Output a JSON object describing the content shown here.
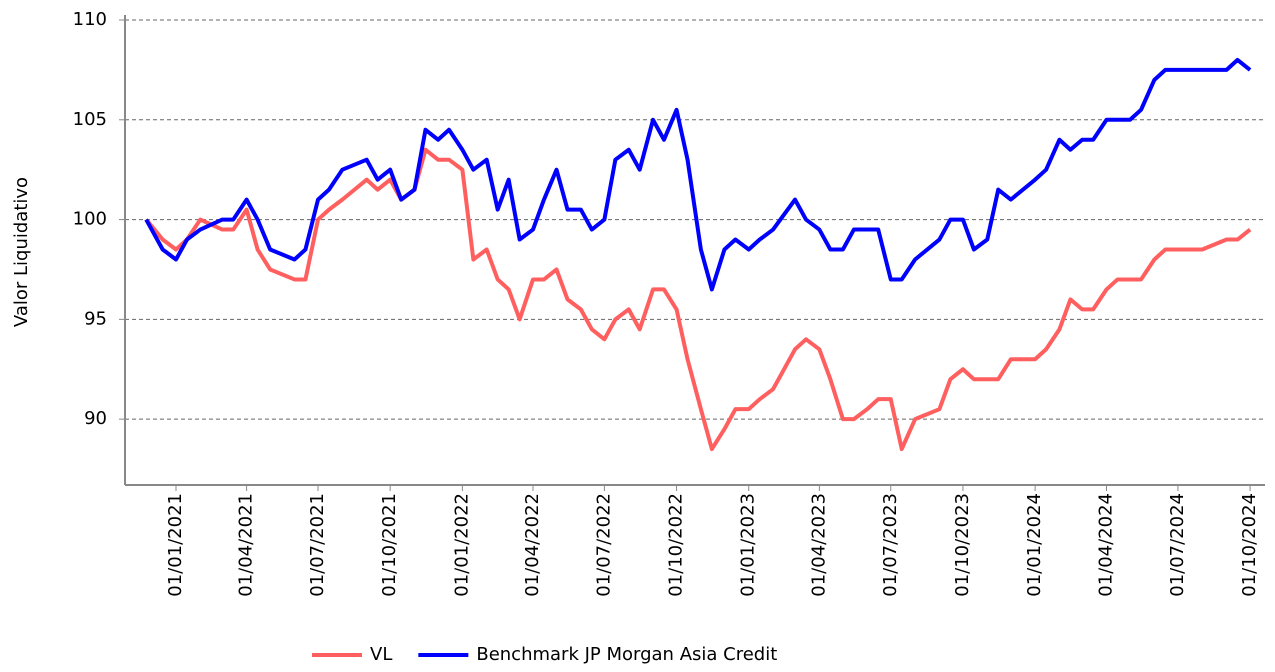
{
  "chart_data": {
    "type": "line",
    "ylabel": "Valor Liquidativo",
    "x": [
      "24/11/2020",
      "15/12/2020",
      "01/01/2021",
      "15/01/2021",
      "01/02/2021",
      "01/03/2021",
      "15/03/2021",
      "01/04/2021",
      "15/04/2021",
      "01/05/2021",
      "01/06/2021",
      "15/06/2021",
      "01/07/2021",
      "15/07/2021",
      "01/08/2021",
      "01/09/2021",
      "15/09/2021",
      "01/10/2021",
      "15/10/2021",
      "01/11/2021",
      "15/11/2021",
      "01/12/2021",
      "15/12/2021",
      "01/01/2022",
      "15/01/2022",
      "01/02/2022",
      "15/02/2022",
      "01/03/2022",
      "15/03/2022",
      "01/04/2022",
      "15/04/2022",
      "01/05/2022",
      "15/05/2022",
      "01/06/2022",
      "15/06/2022",
      "01/07/2022",
      "15/07/2022",
      "01/08/2022",
      "15/08/2022",
      "01/09/2022",
      "15/09/2022",
      "01/10/2022",
      "15/10/2022",
      "01/11/2022",
      "15/11/2022",
      "01/12/2022",
      "15/12/2022",
      "01/01/2023",
      "15/01/2023",
      "01/02/2023",
      "01/03/2023",
      "15/03/2023",
      "01/04/2023",
      "15/04/2023",
      "01/05/2023",
      "15/05/2023",
      "01/06/2023",
      "15/06/2023",
      "01/07/2023",
      "15/07/2023",
      "01/08/2023",
      "01/09/2023",
      "15/09/2023",
      "01/10/2023",
      "15/10/2023",
      "01/11/2023",
      "15/11/2023",
      "01/12/2023",
      "01/01/2024",
      "15/01/2024",
      "01/02/2024",
      "15/02/2024",
      "01/03/2024",
      "15/03/2024",
      "01/04/2024",
      "15/04/2024",
      "01/05/2024",
      "15/05/2024",
      "01/06/2024",
      "15/06/2024",
      "01/08/2024",
      "01/09/2024",
      "15/09/2024",
      "01/10/2024"
    ],
    "series": [
      {
        "name": "VL",
        "color": "#ff5f5f",
        "values": [
          100,
          99,
          98.5,
          99,
          100,
          99.5,
          99.5,
          100.5,
          98.5,
          97.5,
          97,
          97,
          100,
          100.5,
          101,
          102,
          101.5,
          102,
          101,
          101.5,
          103.5,
          103,
          103,
          102.5,
          98,
          98.5,
          97,
          96.5,
          95,
          97,
          97,
          97.5,
          96,
          95.5,
          94.5,
          94,
          95,
          95.5,
          94.5,
          96.5,
          96.5,
          95.5,
          93,
          90.5,
          88.5,
          89.5,
          90.5,
          90.5,
          91,
          91.5,
          93.5,
          94,
          93.5,
          92,
          90,
          90,
          90.5,
          91,
          91,
          88.5,
          90,
          90.5,
          92,
          92.5,
          92,
          92,
          92,
          93,
          93,
          93.5,
          94.5,
          96,
          95.5,
          95.5,
          96.5,
          97,
          97,
          97,
          98,
          98.5,
          98.5,
          99,
          99,
          99.5
        ]
      },
      {
        "name": "Benchmark JP Morgan Asia Credit",
        "color": "#0000ff",
        "values": [
          100,
          98.5,
          98,
          99,
          99.5,
          100,
          100,
          101,
          100,
          98.5,
          98,
          98.5,
          101,
          101.5,
          102.5,
          103,
          102,
          102.5,
          101,
          101.5,
          104.5,
          104,
          104.5,
          103.5,
          102.5,
          103,
          100.5,
          102,
          99,
          99.5,
          101,
          102.5,
          100.5,
          100.5,
          99.5,
          100,
          103,
          103.5,
          102.5,
          105,
          104,
          105.5,
          103,
          98.5,
          96.5,
          98.5,
          99,
          98.5,
          99,
          99.5,
          101,
          100,
          99.5,
          98.5,
          98.5,
          99.5,
          99.5,
          99.5,
          97,
          97,
          98,
          99,
          100,
          100,
          98.5,
          99,
          101.5,
          101,
          102,
          102.5,
          104,
          103.5,
          104,
          104,
          105,
          105,
          105,
          105.5,
          107,
          107.5,
          107.5,
          107.5,
          108,
          107.5
        ]
      }
    ],
    "xlim": [
      "28/10/2020",
      "20/10/2024"
    ],
    "xticks": [
      "01/01/2021",
      "01/04/2021",
      "01/07/2021",
      "01/10/2021",
      "01/01/2022",
      "01/04/2022",
      "01/07/2022",
      "01/10/2022",
      "01/01/2023",
      "01/04/2023",
      "01/07/2023",
      "01/10/2023",
      "01/01/2024",
      "01/04/2024",
      "01/07/2024",
      "01/10/2024"
    ],
    "ylim": [
      86.7,
      110
    ],
    "yticks": [
      90,
      95,
      100,
      105,
      110
    ],
    "grid": true,
    "legend": "bottom"
  }
}
